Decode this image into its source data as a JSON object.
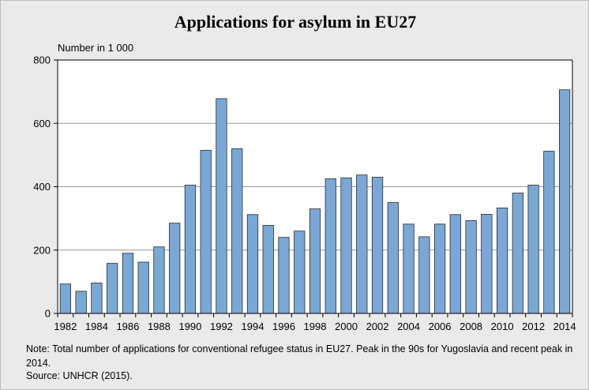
{
  "colors": {
    "bar_fill": "#7aa8d6",
    "bar_stroke": "#2a2a2a",
    "plot_bg": "#ffffff",
    "page_bg": "#eaeaea"
  },
  "chart_data": {
    "type": "bar",
    "title": "Applications for asylum in EU27",
    "ylabel": "Number in 1 000",
    "xlabel": "",
    "ylim": [
      0,
      800
    ],
    "yticks": [
      0,
      200,
      400,
      600,
      800
    ],
    "grid": true,
    "categories": [
      "1982",
      "1983",
      "1984",
      "1985",
      "1986",
      "1987",
      "1988",
      "1989",
      "1990",
      "1991",
      "1992",
      "1993",
      "1994",
      "1995",
      "1996",
      "1997",
      "1998",
      "1999",
      "2000",
      "2001",
      "2002",
      "2003",
      "2004",
      "2005",
      "2006",
      "2007",
      "2008",
      "2009",
      "2010",
      "2011",
      "2012",
      "2013",
      "2014"
    ],
    "xtick_labels": [
      "1982",
      "1984",
      "1986",
      "1988",
      "1990",
      "1992",
      "1994",
      "1996",
      "1998",
      "2000",
      "2002",
      "2004",
      "2006",
      "2008",
      "2010",
      "2012",
      "2014"
    ],
    "values": [
      93,
      70,
      96,
      158,
      190,
      162,
      210,
      285,
      405,
      515,
      678,
      520,
      312,
      278,
      240,
      260,
      330,
      425,
      428,
      437,
      430,
      350,
      282,
      242,
      282,
      312,
      293,
      313,
      333,
      380,
      405,
      512,
      706
    ]
  },
  "footer": {
    "note": "Note: Total number of applications for conventional refugee status in EU27. Peak in the 90s for Yugoslavia and recent peak in 2014.",
    "source": "Source: UNHCR (2015)."
  }
}
